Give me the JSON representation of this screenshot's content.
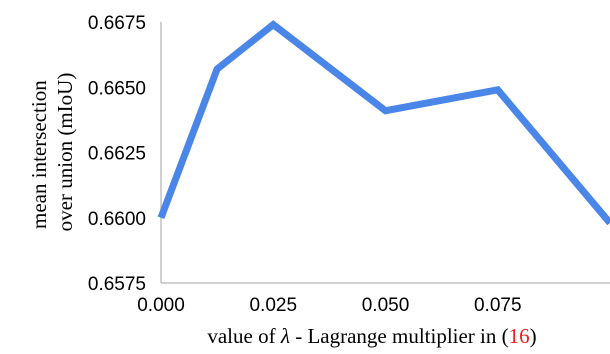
{
  "chart_data": {
    "type": "line",
    "title": "",
    "xlabel": {
      "prefix": "value of ",
      "symbol": "λ",
      "middle": " - Lagrange multiplier in (",
      "ref": "16",
      "suffix": ")"
    },
    "ylabel": {
      "line1": "mean intersection",
      "line2": "over union (mIoU)"
    },
    "xlim": [
      0,
      0.1
    ],
    "ylim": [
      0.6575,
      0.6675
    ],
    "x_ticks": [
      "0.000",
      "0.025",
      "0.050",
      "0.075"
    ],
    "y_ticks": [
      "0.6575",
      "0.6600",
      "0.6625",
      "0.6650",
      "0.6675"
    ],
    "grid": false,
    "legend": "none",
    "series": [
      {
        "color": "#4a86e8",
        "x": [
          0.0,
          0.0125,
          0.025,
          0.05,
          0.075,
          0.1
        ],
        "y": [
          0.66,
          0.6657,
          0.6674,
          0.6641,
          0.6649,
          0.6598
        ]
      }
    ]
  }
}
